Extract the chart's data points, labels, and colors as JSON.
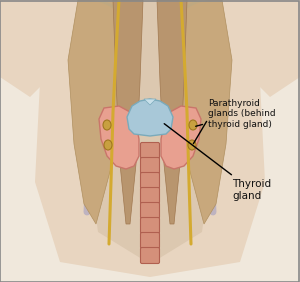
{
  "figsize": [
    3.0,
    2.82
  ],
  "dpi": 100,
  "bg_color": "#f5efe6",
  "labels": {
    "thyroid": "Thyroid\ngland",
    "parathyroid": "Parathyroid\nglands (behind\nthyroid gland)"
  },
  "colors": {
    "skin_outer": "#e8d5c0",
    "body_bg": "#f0e8dc",
    "neck_center": "#dcc8b0",
    "muscle": "#c8a87c",
    "muscle_edge": "#b09060",
    "inner_muscle": "#b8956e",
    "inner_muscle_edge": "#a07850",
    "thyroid_fill": "#c9756a",
    "thyroid_light": "#e8a090",
    "cartilage_blue": "#a8c8d8",
    "cartilage_edge": "#7aaabb",
    "cartilage_light": "#c8e0ea",
    "trachea_fill": "#d4907a",
    "trachea_edge": "#b06050",
    "nerve_yellow": "#d4aa30",
    "vein_purple": "#b0a8c0",
    "parathyroid_dot": "#c8a040",
    "parathyroid_edge": "#a07820",
    "clavicle": "#c0a880",
    "label_color": "#111111",
    "border_color": "#888888"
  }
}
